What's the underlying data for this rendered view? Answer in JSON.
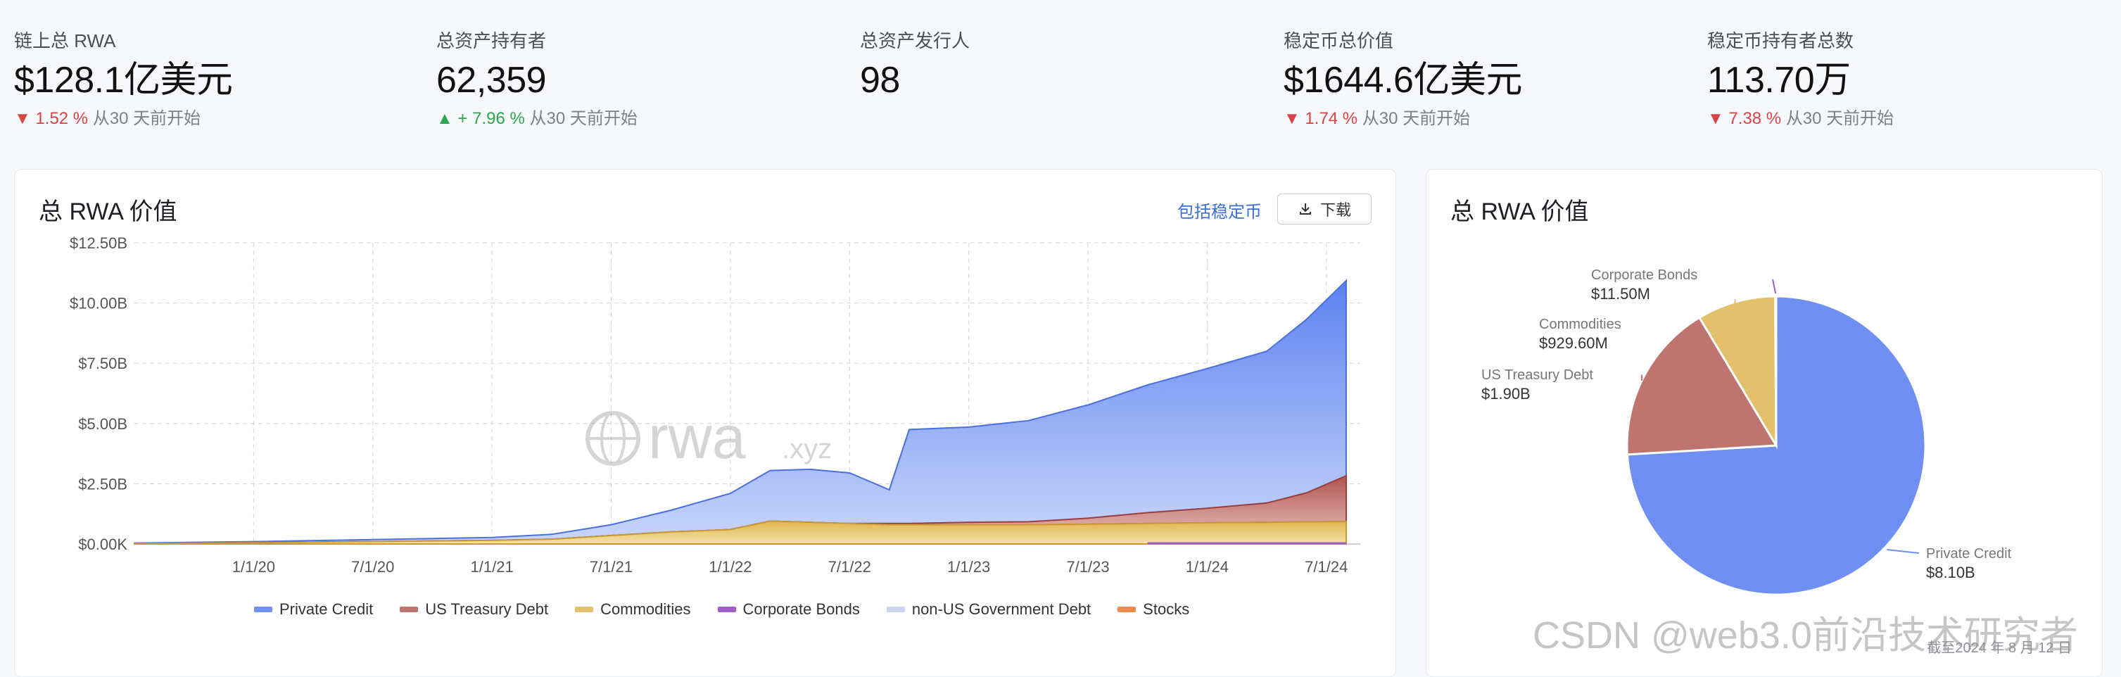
{
  "stats": [
    {
      "label": "链上总 RWA",
      "value": "$128.1亿美元",
      "dir": "down",
      "pct": "▼ 1.52 %",
      "since": "从30 天前开始"
    },
    {
      "label": "总资产持有者",
      "value": "62,359",
      "dir": "up",
      "pct": "▲ + 7.96 %",
      "since": "从30 天前开始"
    },
    {
      "label": "总资产发行人",
      "value": "98",
      "dir": "none",
      "pct": "",
      "since": ""
    },
    {
      "label": "稳定币总价值",
      "value": "$1644.6亿美元",
      "dir": "down",
      "pct": "▼ 1.74 %",
      "since": "从30 天前开始"
    },
    {
      "label": "稳定币持有者总数",
      "value": "113.70万",
      "dir": "down",
      "pct": "▼ 7.38 %",
      "since": "从30 天前开始"
    }
  ],
  "left_card": {
    "title": "总 RWA 价值",
    "include_stablecoins": "包括稳定币",
    "download": "下载",
    "watermark": "rwa",
    "watermark_suffix": ".xyz"
  },
  "right_card": {
    "title": "总 RWA 价值",
    "as_of": "截至2024 年 8 月 12 日"
  },
  "csdn_watermark": "CSDN @web3.0前沿技术研究者",
  "colors": {
    "private_credit": "#6f8ff2",
    "us_treasury": "#c0746f",
    "commodities": "#e2c06c",
    "corporate_bonds": "#a05cc8",
    "non_us_gov": "#c7d6ee",
    "stocks": "#f08a4b"
  },
  "chart_data": [
    {
      "type": "area",
      "stacked": true,
      "yticks": [
        "$12.50B",
        "$10.00B",
        "$7.50B",
        "$5.00B",
        "$2.50B",
        "$0.00K"
      ],
      "ylim": [
        0,
        12.5
      ],
      "x_ticks": [
        "1/1/20",
        "7/1/20",
        "1/1/21",
        "7/1/21",
        "1/1/22",
        "7/1/22",
        "1/1/23",
        "7/1/23",
        "1/1/24",
        "7/1/24"
      ],
      "x": [
        "2019-07",
        "2020-01",
        "2020-07",
        "2021-01",
        "2021-04",
        "2021-07",
        "2021-10",
        "2022-01",
        "2022-03",
        "2022-05",
        "2022-07",
        "2022-09",
        "2022-10",
        "2023-01",
        "2023-04",
        "2023-07",
        "2023-10",
        "2024-01",
        "2024-04",
        "2024-06",
        "2024-08"
      ],
      "series": [
        {
          "name": "Private Credit",
          "values": [
            0.02,
            0.05,
            0.08,
            0.12,
            0.2,
            0.45,
            0.9,
            1.5,
            2.1,
            2.2,
            2.1,
            1.4,
            3.9,
            3.95,
            4.2,
            4.7,
            5.3,
            5.8,
            6.3,
            7.2,
            8.1
          ]
        },
        {
          "name": "US Treasury Debt",
          "values": [
            0,
            0,
            0,
            0,
            0,
            0,
            0,
            0,
            0,
            0,
            0,
            0.05,
            0.05,
            0.1,
            0.12,
            0.25,
            0.45,
            0.6,
            0.8,
            1.2,
            1.9
          ]
        },
        {
          "name": "Commodities",
          "values": [
            0.02,
            0.05,
            0.1,
            0.15,
            0.2,
            0.35,
            0.5,
            0.6,
            0.95,
            0.9,
            0.85,
            0.8,
            0.8,
            0.8,
            0.8,
            0.82,
            0.85,
            0.88,
            0.9,
            0.92,
            0.93
          ]
        },
        {
          "name": "Corporate Bonds",
          "values": [
            0,
            0,
            0,
            0,
            0,
            0,
            0,
            0,
            0,
            0,
            0,
            0,
            0,
            0,
            0,
            0,
            0.01,
            0.01,
            0.01,
            0.01,
            0.0115
          ]
        },
        {
          "name": "non-US Government Debt",
          "values": [
            0,
            0,
            0,
            0,
            0,
            0,
            0,
            0,
            0,
            0,
            0,
            0,
            0,
            0,
            0,
            0,
            0,
            0,
            0,
            0,
            0
          ]
        },
        {
          "name": "Stocks",
          "values": [
            0,
            0,
            0,
            0,
            0,
            0,
            0,
            0,
            0,
            0,
            0,
            0,
            0,
            0,
            0,
            0,
            0,
            0,
            0,
            0,
            0
          ]
        }
      ]
    },
    {
      "type": "pie",
      "slices": [
        {
          "name": "Private Credit",
          "label": "$8.10B",
          "value": 8.1
        },
        {
          "name": "US Treasury Debt",
          "label": "$1.90B",
          "value": 1.9
        },
        {
          "name": "Commodities",
          "label": "$929.60M",
          "value": 0.9296
        },
        {
          "name": "Corporate Bonds",
          "label": "$11.50M",
          "value": 0.0115
        }
      ]
    }
  ]
}
